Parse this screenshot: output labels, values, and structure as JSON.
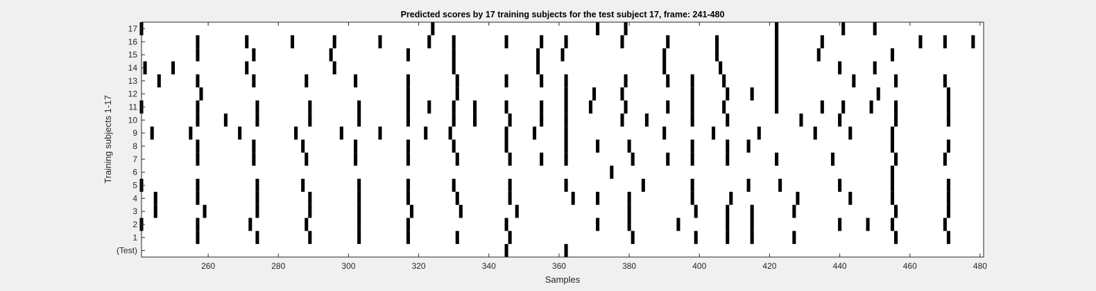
{
  "chart_data": {
    "type": "heatmap",
    "title": "Predicted scores by 17 training subjects for the test subject 17, frame: 241-480",
    "xlabel": "Samples",
    "ylabel": "Training subjects 1-17",
    "xlim": [
      241,
      481
    ],
    "x_ticks": [
      260,
      280,
      300,
      320,
      340,
      360,
      380,
      400,
      420,
      440,
      460,
      480
    ],
    "y_tick_labels": [
      "(Test)",
      "1",
      "2",
      "3",
      "4",
      "5",
      "6",
      "7",
      "8",
      "9",
      "10",
      "11",
      "12",
      "13",
      "14",
      "15",
      "16",
      "17"
    ],
    "colors": {
      "mark": "#000000",
      "background": "#ffffff",
      "figure": "#f0f0f0"
    },
    "rows": [
      {
        "label": "(Test)",
        "x": [
          345,
          362
        ]
      },
      {
        "label": "1",
        "x": [
          257,
          274,
          289,
          303,
          317,
          331,
          346,
          381,
          399,
          408,
          415,
          427,
          456,
          471
        ]
      },
      {
        "label": "2",
        "x": [
          241,
          257,
          272,
          288,
          303,
          317,
          345,
          371,
          380,
          394,
          408,
          415,
          440,
          448,
          455,
          470
        ]
      },
      {
        "label": "3",
        "x": [
          245,
          259,
          274,
          289,
          303,
          318,
          332,
          348,
          380,
          399,
          408,
          415,
          427,
          456,
          471
        ]
      },
      {
        "label": "4",
        "x": [
          245,
          257,
          274,
          289,
          303,
          317,
          331,
          346,
          364,
          371,
          380,
          398,
          409,
          428,
          443,
          455,
          471
        ]
      },
      {
        "label": "5",
        "x": [
          241,
          257,
          274,
          287,
          303,
          317,
          330,
          346,
          362,
          384,
          398,
          414,
          423,
          440,
          455,
          471
        ]
      },
      {
        "label": "6",
        "x": [
          375,
          455
        ]
      },
      {
        "label": "7",
        "x": [
          257,
          273,
          288,
          302,
          317,
          331,
          346,
          355,
          362,
          381,
          391,
          398,
          408,
          422,
          438,
          456,
          470
        ]
      },
      {
        "label": "8",
        "x": [
          257,
          273,
          287,
          302,
          317,
          330,
          345,
          362,
          371,
          380,
          398,
          408,
          414,
          455,
          471
        ]
      },
      {
        "label": "9",
        "x": [
          244,
          255,
          269,
          285,
          298,
          309,
          322,
          329,
          345,
          353,
          362,
          390,
          404,
          417,
          433,
          443,
          455
        ]
      },
      {
        "label": "10",
        "x": [
          257,
          265,
          274,
          289,
          303,
          317,
          330,
          336,
          346,
          355,
          362,
          378,
          385,
          398,
          408,
          429,
          440,
          456,
          471
        ]
      },
      {
        "label": "11",
        "x": [
          241,
          257,
          274,
          289,
          303,
          317,
          323,
          330,
          336,
          345,
          355,
          362,
          369,
          379,
          391,
          398,
          407,
          422,
          435,
          441,
          449,
          456,
          471
        ]
      },
      {
        "label": "12",
        "x": [
          258,
          317,
          331,
          362,
          370,
          378,
          398,
          408,
          415,
          422,
          451,
          471
        ]
      },
      {
        "label": "13",
        "x": [
          246,
          257,
          273,
          288,
          302,
          317,
          331,
          345,
          355,
          362,
          379,
          391,
          398,
          407,
          422,
          444,
          456,
          470
        ]
      },
      {
        "label": "14",
        "x": [
          242,
          250,
          271,
          296,
          330,
          354,
          390,
          406,
          422,
          440,
          450
        ]
      },
      {
        "label": "15",
        "x": [
          257,
          273,
          295,
          317,
          330,
          354,
          361,
          390,
          405,
          422,
          434,
          455
        ]
      },
      {
        "label": "16",
        "x": [
          257,
          271,
          284,
          296,
          309,
          323,
          330,
          345,
          355,
          362,
          378,
          391,
          405,
          422,
          435,
          463,
          470,
          478
        ]
      },
      {
        "label": "17",
        "x": [
          241,
          324,
          371,
          379,
          422,
          441,
          450
        ]
      }
    ],
    "long_marks": [
      {
        "x": 422,
        "from_row": "11",
        "to_row": "17"
      }
    ],
    "grid": false,
    "legend": "none"
  }
}
